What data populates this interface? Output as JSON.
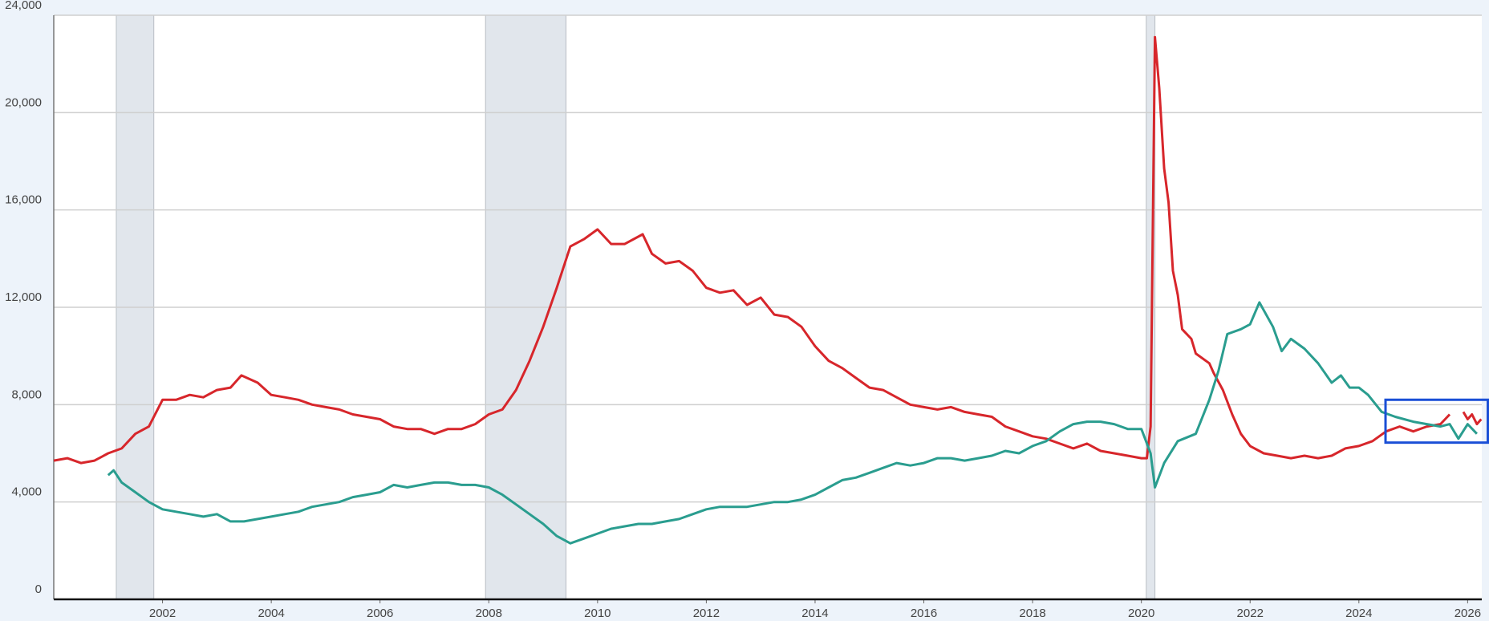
{
  "chart_data": {
    "type": "line",
    "xlim": [
      2000,
      2026.26
    ],
    "xticks": [
      2002,
      2004,
      2006,
      2008,
      2010,
      2012,
      2014,
      2016,
      2018,
      2020,
      2022,
      2024,
      2026
    ],
    "ylim": [
      0,
      24000
    ],
    "yticks": [
      0,
      {
        "value": 4000,
        "label": "4,000"
      },
      {
        "value": 8000,
        "label": "8,000"
      },
      {
        "value": 12000,
        "label": "12,000"
      },
      {
        "value": 16000,
        "label": "16,000"
      },
      {
        "value": 20000,
        "label": "20,000"
      },
      {
        "value": 24000,
        "label": "24,000"
      }
    ],
    "grid": true,
    "recessions": [
      [
        2001.15,
        2001.84
      ],
      [
        2007.94,
        2009.42
      ],
      [
        2020.09,
        2020.25
      ]
    ],
    "highlight": {
      "x": [
        2024.49,
        2026.39
      ],
      "y": [
        6440,
        8200
      ],
      "color": "#1a4fd6"
    },
    "series": [
      {
        "color": "#d7262b",
        "x": [
          2000,
          2000.25,
          2000.5,
          2000.75,
          2001,
          2001.25,
          2001.5,
          2001.75,
          2002,
          2002.25,
          2002.5,
          2002.75,
          2003,
          2003.25,
          2003.45,
          2003.75,
          2004,
          2004.25,
          2004.5,
          2004.75,
          2005,
          2005.25,
          2005.5,
          2005.75,
          2006,
          2006.25,
          2006.5,
          2006.75,
          2007,
          2007.25,
          2007.5,
          2007.75,
          2008,
          2008.25,
          2008.5,
          2008.75,
          2009,
          2009.25,
          2009.5,
          2009.75,
          2010,
          2010.25,
          2010.5,
          2010.83,
          2011,
          2011.25,
          2011.5,
          2011.75,
          2012,
          2012.25,
          2012.5,
          2012.75,
          2013,
          2013.25,
          2013.5,
          2013.75,
          2014,
          2014.25,
          2014.5,
          2014.75,
          2015,
          2015.25,
          2015.5,
          2015.75,
          2016,
          2016.25,
          2016.5,
          2016.75,
          2017,
          2017.25,
          2017.5,
          2017.75,
          2018,
          2018.25,
          2018.5,
          2018.75,
          2019,
          2019.25,
          2019.5,
          2019.75,
          2020,
          2020.1,
          2020.17,
          2020.25,
          2020.33,
          2020.42,
          2020.5,
          2020.58,
          2020.67,
          2020.75,
          2020.92,
          2021,
          2021.25,
          2021.33,
          2021.5,
          2021.67,
          2021.83,
          2022,
          2022.25,
          2022.5,
          2022.75,
          2023,
          2023.25,
          2023.5,
          2023.75,
          2024,
          2024.25,
          2024.5,
          2024.75,
          2025,
          2025.25,
          2025.5,
          2025.67,
          2025.75,
          2025.92,
          2026,
          2026.08,
          2026.17,
          2026.25
        ],
        "values": [
          5700,
          5800,
          5600,
          5700,
          6000,
          6200,
          6800,
          7100,
          8200,
          8200,
          8400,
          8300,
          8600,
          8700,
          9200,
          8900,
          8400,
          8300,
          8200,
          8000,
          7900,
          7800,
          7600,
          7500,
          7400,
          7100,
          7000,
          7000,
          6800,
          7000,
          7000,
          7200,
          7600,
          7800,
          8600,
          9800,
          11200,
          12800,
          14500,
          14800,
          15200,
          14600,
          14600,
          15000,
          14200,
          13800,
          13900,
          13500,
          12800,
          12600,
          12700,
          12100,
          12400,
          11700,
          11600,
          11200,
          10400,
          9800,
          9500,
          9100,
          8700,
          8600,
          8300,
          8000,
          7900,
          7800,
          7900,
          7700,
          7600,
          7500,
          7100,
          6900,
          6700,
          6600,
          6400,
          6200,
          6400,
          6100,
          6000,
          5900,
          5800,
          5800,
          7100,
          23100,
          21000,
          17700,
          16300,
          13500,
          12500,
          11100,
          10700,
          10100,
          9700,
          9300,
          8600,
          7600,
          6800,
          6300,
          6000,
          5900,
          5800,
          5900,
          5800,
          5900,
          6200,
          6300,
          6500,
          6900,
          7100,
          6900,
          7100,
          7200,
          7600,
          null,
          7700,
          7400,
          7600,
          7200,
          7400
        ]
      },
      {
        "color": "#2a9d8f",
        "x": [
          2001,
          2001.1,
          2001.25,
          2001.5,
          2001.75,
          2002,
          2002.25,
          2002.5,
          2002.75,
          2003,
          2003.25,
          2003.5,
          2003.75,
          2004,
          2004.25,
          2004.5,
          2004.75,
          2005,
          2005.25,
          2005.5,
          2005.75,
          2006,
          2006.25,
          2006.5,
          2006.75,
          2007,
          2007.25,
          2007.5,
          2007.75,
          2008,
          2008.25,
          2008.5,
          2008.75,
          2009,
          2009.25,
          2009.5,
          2009.75,
          2010,
          2010.25,
          2010.5,
          2010.75,
          2011,
          2011.25,
          2011.5,
          2011.75,
          2012,
          2012.25,
          2012.5,
          2012.75,
          2013,
          2013.25,
          2013.5,
          2013.75,
          2014,
          2014.25,
          2014.5,
          2014.75,
          2015,
          2015.25,
          2015.5,
          2015.75,
          2016,
          2016.25,
          2016.5,
          2016.75,
          2017,
          2017.25,
          2017.5,
          2017.75,
          2018,
          2018.25,
          2018.5,
          2018.75,
          2019,
          2019.25,
          2019.5,
          2019.75,
          2020,
          2020.17,
          2020.25,
          2020.42,
          2020.67,
          2021,
          2021.25,
          2021.42,
          2021.58,
          2021.83,
          2022,
          2022.17,
          2022.42,
          2022.58,
          2022.75,
          2023,
          2023.25,
          2023.5,
          2023.67,
          2023.83,
          2024,
          2024.17,
          2024.42,
          2024.67,
          2025,
          2025.25,
          2025.5,
          2025.67,
          2025.83,
          2026,
          2026.17
        ],
        "values": [
          5100,
          5300,
          4800,
          4400,
          4000,
          3700,
          3600,
          3500,
          3400,
          3500,
          3200,
          3200,
          3300,
          3400,
          3500,
          3600,
          3800,
          3900,
          4000,
          4200,
          4300,
          4400,
          4700,
          4600,
          4700,
          4800,
          4800,
          4700,
          4700,
          4600,
          4300,
          3900,
          3500,
          3100,
          2600,
          2300,
          2500,
          2700,
          2900,
          3000,
          3100,
          3100,
          3200,
          3300,
          3500,
          3700,
          3800,
          3800,
          3800,
          3900,
          4000,
          4000,
          4100,
          4300,
          4600,
          4900,
          5000,
          5200,
          5400,
          5600,
          5500,
          5600,
          5800,
          5800,
          5700,
          5800,
          5900,
          6100,
          6000,
          6300,
          6500,
          6900,
          7200,
          7300,
          7300,
          7200,
          7000,
          7000,
          6000,
          4600,
          5600,
          6500,
          6800,
          8200,
          9400,
          10900,
          11100,
          11300,
          12200,
          11200,
          10200,
          10700,
          10300,
          9700,
          8900,
          9200,
          8700,
          8700,
          8400,
          7700,
          7500,
          7300,
          7200,
          7100,
          7200,
          6600,
          7200,
          6800
        ]
      }
    ]
  }
}
